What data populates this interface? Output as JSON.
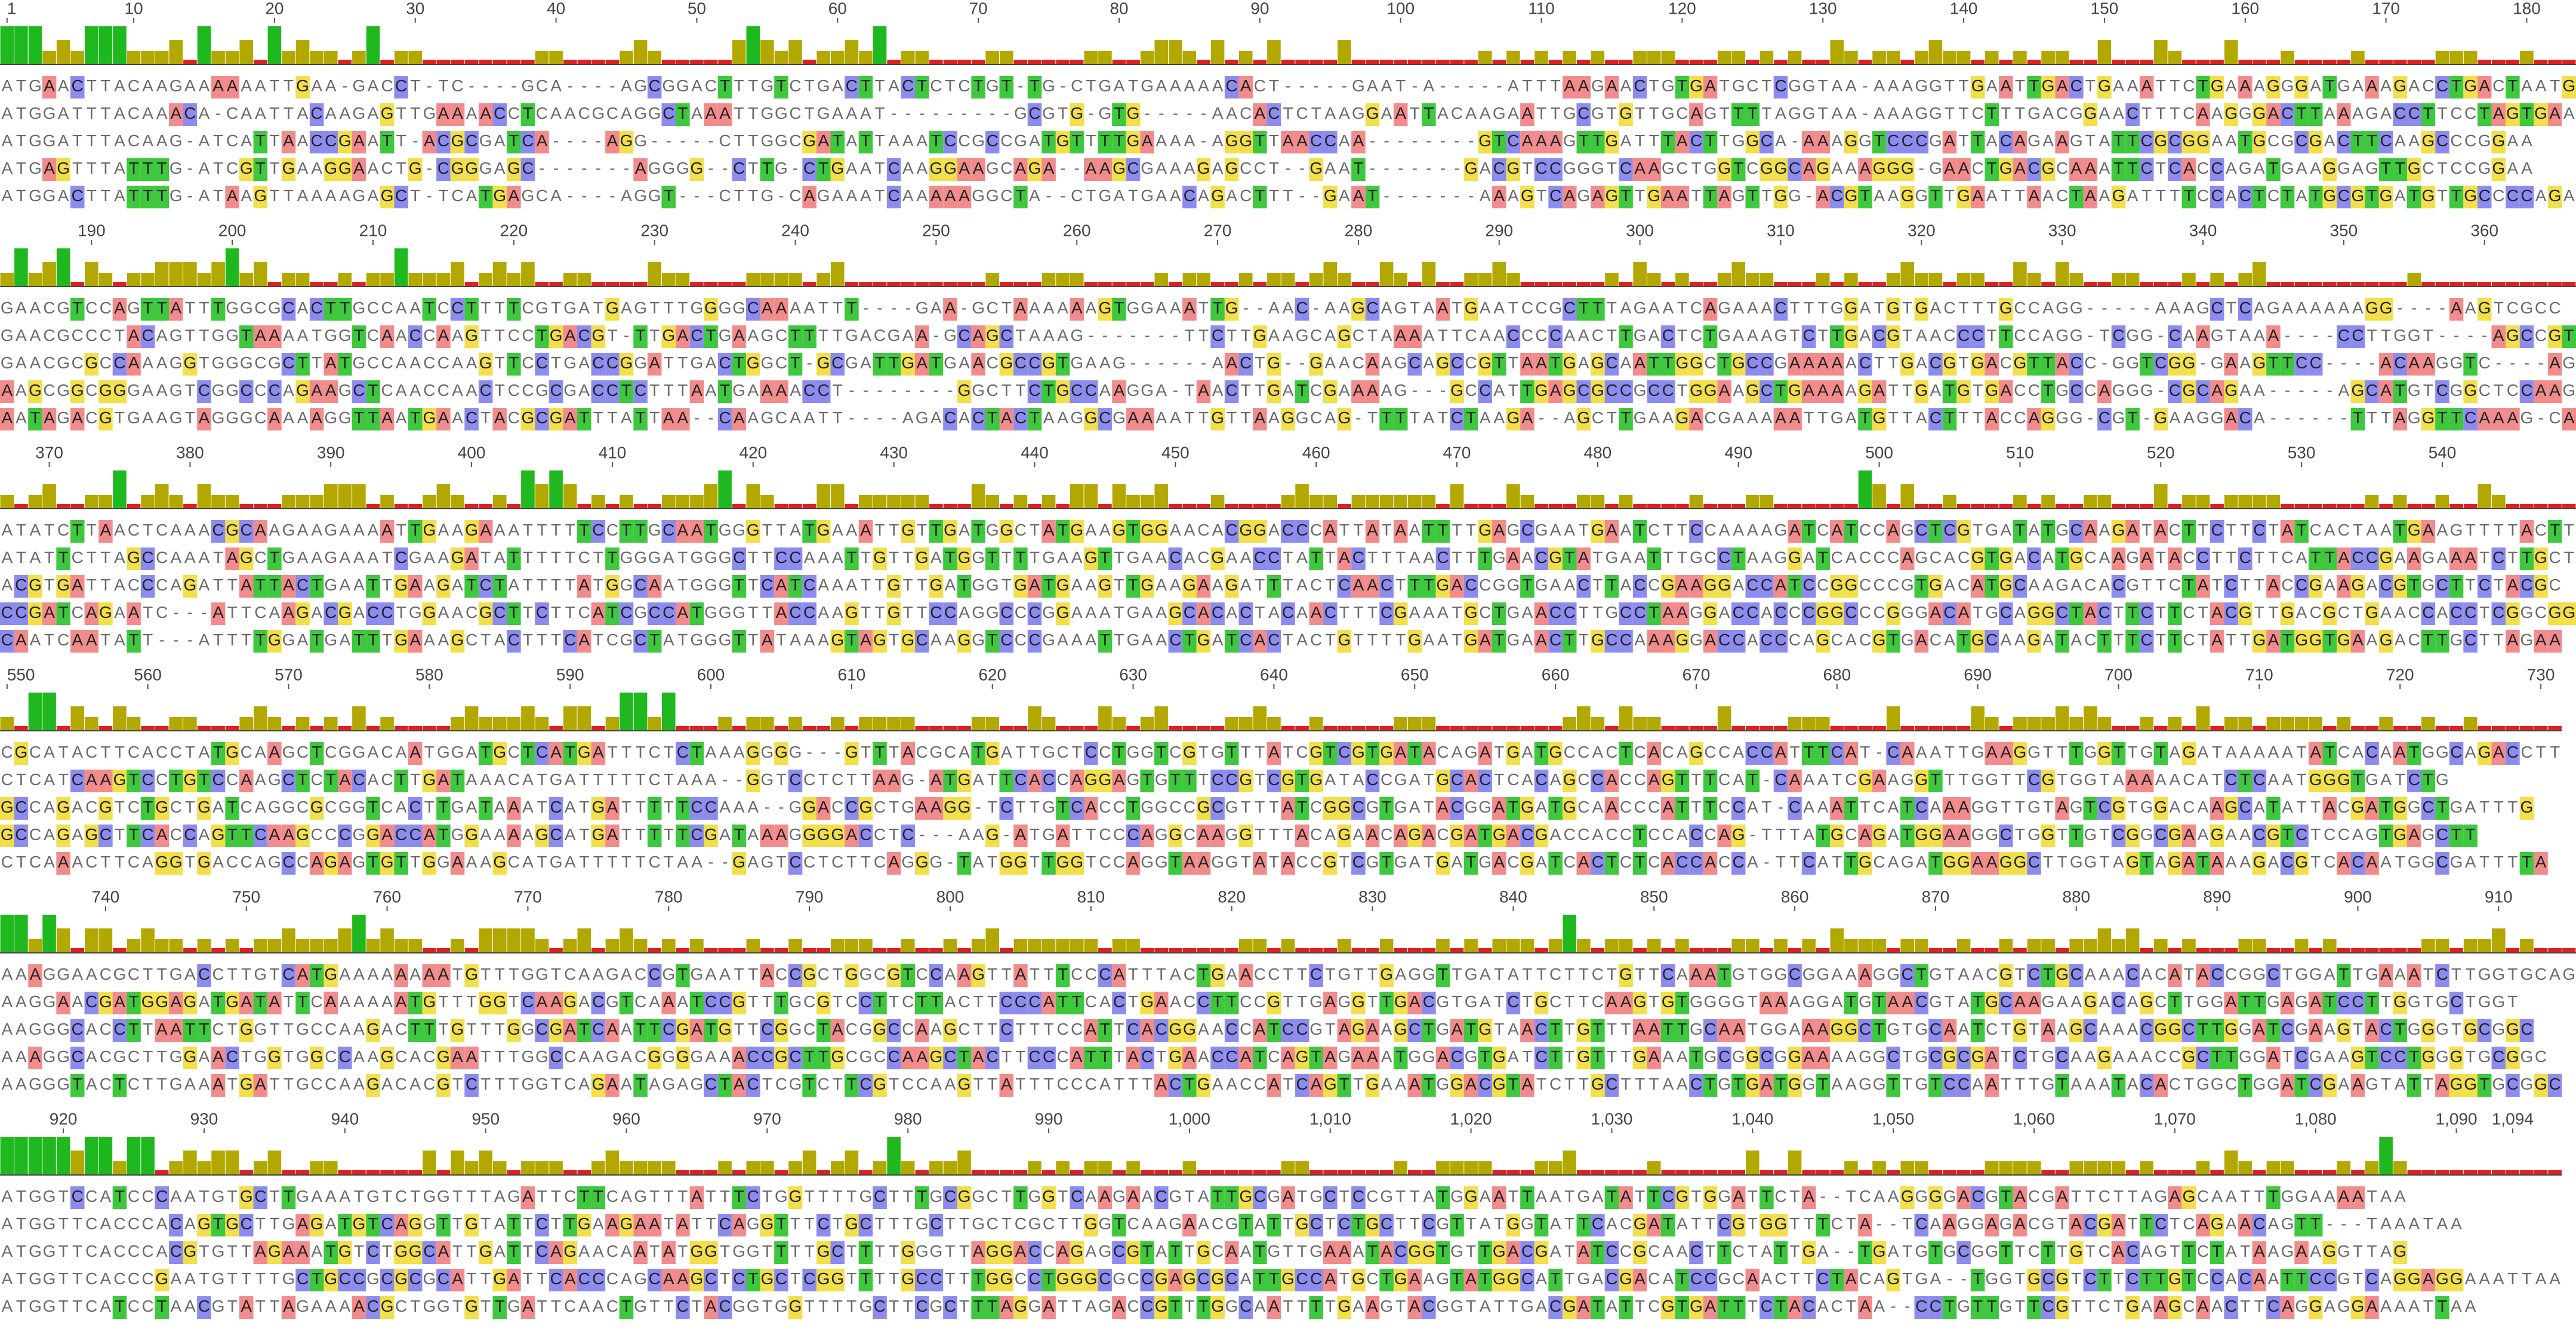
{
  "ruler": [
    1,
    10,
    20,
    30,
    40,
    50,
    60,
    70,
    80,
    90,
    100,
    110,
    120,
    130,
    140,
    150,
    160,
    170,
    180,
    190,
    200,
    210,
    220,
    230,
    240,
    250,
    260,
    270,
    280,
    290,
    300,
    310,
    320,
    330,
    340,
    350,
    360,
    370,
    380,
    390,
    400,
    410,
    420,
    430,
    440,
    450,
    460,
    470,
    480,
    490,
    500,
    510,
    520,
    530,
    540,
    550,
    560,
    570,
    580,
    590,
    600,
    610,
    620,
    630,
    640,
    650,
    660,
    670,
    680,
    690,
    700,
    710,
    720,
    730,
    740,
    750,
    760,
    770,
    780,
    790,
    800,
    810,
    820,
    830,
    840,
    850,
    860,
    870,
    880,
    890,
    900,
    910,
    920,
    930,
    940,
    950,
    960,
    970,
    980,
    990,
    {
      "value": 1000,
      "label": "1,000"
    },
    {
      "value": 1010,
      "label": "1,010"
    },
    {
      "value": 1020,
      "label": "1,020"
    },
    {
      "value": 1030,
      "label": "1,030"
    },
    {
      "value": 1040,
      "label": "1,040"
    },
    {
      "value": 1050,
      "label": "1,050"
    },
    {
      "value": 1060,
      "label": "1,060"
    },
    {
      "value": 1070,
      "label": "1,070"
    },
    {
      "value": 1080,
      "label": "1,080"
    },
    {
      "value": 1090,
      "label": "1,090"
    },
    {
      "value": 1094,
      "label": "1,094"
    }
  ],
  "base_colors": {
    "A": "#f28c8c",
    "C": "#8c8cf0",
    "G": "#f2df4a",
    "T": "#3ec83e"
  },
  "conservation_colors": {
    "full": "#1fb81f",
    "partial": "#b3a800",
    "low": "#e02020"
  },
  "blocks": [
    {
      "rows": [
        "ATGAACTTACAAGAAAAAATTGAA-GACCT-TC----GCA----AGCGGACTTTGTCTGACTTACTCTCTGT-TG-CTGATGAAAAACACT-----GAAT-A-----ATTTAAGAACTGTGATGCTCGGTAA-AAAGGTTGAATTGACTGAAATTCTGAAAGGGATGAAAGACCTGACTAATGAA",
        "ATGGATTTACAAACA-CAATTACAAGAGTTGAAAACCTCAACGCAGGCTAAATTGGCTGAAAT---------GCGTG-GTG-----AACACTCTAAGGAATTACAAGAATTGCGTGTTGCAGTTTTAGGTAA-AAAGGTTCTTTGACGGAACTTTCAAGGGACTTAAAGACCTTCCTAGTGAA",
        "ATGGATTTACAAG-ATCATTAACCGAATT-ACGCGATCA----AGG-----CTTGGCGATATTAAATCCGCCGATGTTTTGAAAA-AGGTTAACCAA--------GTCAAAGTTGATTTACTTGGCA-AAAGGTCCCGATTACAGAAGTATTCGCGGAATGCGCGACTTCAAGCCCGGAA",
        "ATGAGTTTATTTG-ATCGTTGAAGGAACTG-CGGGAGC-------AGGGG--CTTG-CTGAATCAAGGAAGCAGA--AAGCGAAAGAGCCT--GAAT-------GACGTCCGGGTCAAGCTGGTCGGCAGAAAGGG-GAACTGACGCAAATTCTCACCAGATGAAGGAGTTGCTCCGGAA",
        "ATGGACTTATTTG-ATAAGTTAAAAGAGCT-TCATGAGCA----AGGT---CTTG-CAGAAATCAAAAAGGCTA--CTGATGAACAGACTTT--GAAT-------AAAGTCAGAGTTGAATTAGTTGG-ACGTAAGGTTGAATTAACTAAGATTTTCCACTCTATGCGTGATGTTGCCCCAGAA"
      ]
    },
    {
      "rows": [
        "GAACGTCCAGTTATTTGGCGCACTTGCCAATCCTTTTCGTGATGAGTTTGGGGCAAAATTT----GAA-GCTAAAAAAGTGGAAATTG--AAC-AAGCAGTAATGAATCCGCTTTAGAATCAGAAACTTTGGATGTGACTTTGCCAGG-----AAAGCTCAGAAAAAAGG----AAGTCGCC",
        "GAACGCCCTACAGTTGGTAAAATGGTCAACCAAGTTCCTGACGT-TTGACTGAAGCTTTTGACGAA-GCAGCTAAAG-------TTCTTGAAGCAGCTAAAATTCAACCCCAACTTGACTCTGAAAGTCTTGACGTAACCCTTCCAGG-TCGG-CAAGTAAA----CCTTGGT----AGCCGT",
        "GAACGCGCCAAAGGTGGGCGCTTATGCCAACCAAGTTCCTGACCGGATTGACTGGCT-GCGATTGATGAACGCCGTGAAG------AACTG--GAACAAGCAGCCGTTAATGAGCAATTGGCTGCCGAAAAACTTGACGTGACGTTACC-GGTCGG-GAAGTTCC----ACAAGGTC----AGCC-TC",
        "AAGCGGCGGGAAGTCGGCCCAGAAGCTCAACCAACTCCGCGACCTCTTTAATGAAAACCT--------GGCTTCTGCCAAGGA-TAACTTGATCGAAAAG---GCCATTGAGCGCCGCCTGGAAGCTGAAAAGATTGATGTGACCTGCCAGGG-CGCAGAA-----AGCATGTCGGCTCCAAG-CACC",
        "AATAGACGTGAAGTAGGGCAAAAGGTTAATGAACTACGCGATTTATTAA--CAAGCAATT----AGACACTACTAAGGCGAAAATTGTTAAGGCAG-TTTTATCTAAGA--AGCTTGAAGACGAAAAATTGATGTTACTTTACCAGGG-CGT-GAAGGACA------TTTAGGTTCAAAG-CATC"
      ]
    },
    {
      "rows": [
        "ATATCTTAACTCAAACGCAAGAAGAAAATTGAAGAAATTTTTCCTTGCAATGGGTTATGAAATTGTTGATGGCTATGAAGTGGAACACGGACCCATTATAATTTTGAGCGAATGAATCTTCCAAAAGATCATCCAGCTCGTGATATGCAAGATACTTCTTCTATCACTAATGAAGTTTTACTTCGTA",
        "ATATTCTTAGCCAAATAGCTGAAGAAATCGAAGATATTTTTCTTGGGATGGGCTTCCAAATTGTTGATGGTTTTGAAGTTGAACACGAACCTATTACTTTAACTTTGAACGTATGAATTTGCCTAAGGATCACCCAGCACGTGACATGCAAGATACCTTCTTCATTACCGAAGAAATCTTGCTTCGTC",
        "ACGTGATTACCCAGATTATTACTGAATTGAAGATCTATTTTATGGCAATGGGTTCATCAAATTGTTGATGGTGATGAAGTTGAAGAAGATTTACTCAACTTTGACCGGTGAACTTACCGAAGGACCATCCGGCCCGTGACATGCAAGACACGTTCTATCTTACCGAAGACGTGCTTCTACGC",
        "CCGATCAGAATC---ATTCAAGACGACCTGGAACGCTTCTTCATCGCCATGGGTTACCAAGTTGTTCCAGGCCCGGAAATGAAGCACACTACAACTTTCGAAATGCTGAACCTTGCCTAAGGACCACCCGGCCCGGGACATGCAGGCTACTTCTTCTACGTTGACGCTGAACCACCTCGGCGG",
        "CAATCAATATT---ATTTTGGATGATTTGAAAGCTACTTTCATCGCTATGGGTTATAAAGTAGTGCAAGGTCCCGAAATTGAACTGATCACTACTGTTTTGAATGATGAACTTGCCAAAGGACCACCCAGCACGTGACATGCAAGATACTTTCTTCTATTGATGGTGAAGACTTGCTTAGAA"
      ]
    },
    {
      "rows": [
        "CGCATACTTCACCTATGCAAGCTCGGACAATGGATGCTCATGATTTCTCTAAAGGGG---GTTTACGCATGATTGCTCCTGGTCGTGTTTATCGTCGTGATACAGATGATGCCACTCACAGCCACCATTTCAT-CAAATTGAAGGTTTGGTTGTAGATAAAAATATCACAATGGCAGACCTT",
        "CTCATCAAGTCCTGTCCAAGCTCTACACTTGATAAACATGATTTTTCTAAA--GGTCCTCTTAAG-ATGATTCACCAGGAGTGTTTCCGTCGTGATACCGATGCACTCACAGCCACCAGTTTCAT-CAAATCGAAGGTTTGGTTCGTGGTAAAAACATCTCAATGGGTGATCTG",
        "GCCAGACGTCTGCTGATCAGGCGCGGTCACTTGATAAATCATGATTTTTCCAAA--GGACCGCTGAAGG-TCTTGTCACCTGGCCGCGTTTATCGGCGTGATACGGATGATGCAACCCATTTCCAT-CAAATTCATCAAAGGTTGTAGTCGTGGACAAGCATATTACGATGGCTGATTTG",
        "GCCAGAGCTTCACCAGTTCAAGCCCGGACCATGGAAAAGCATGATTTTTCGATAAAGGGGACCTC---AAG-ATGATTCCCAGGCAAGGTTTACAGAACAGACGATGACGACCACCTCCACCAG-TTTATGCAGATGGAAGGCTGGTTGTCGGCGAAGAACGTCTCCAGTGAGCTT",
        "CTCAAACTTCAGGTGACCAGCCAGAGTGTTGGAAAGCATGATTTTTCTAA--GAGTCCTCTTCAGGG-TATGGTTGGTCCAGGTAAGGTATACCGTCGTGATGATGACGATCACTCTCACCACCA-TTCATTGCAGATGGAAGGCTTGGTAGTAGATAAAGACGTCACAATGGCGATTTTA"
      ]
    },
    {
      "rows": [
        "AAAGGAACGCTTGACCTTGTCATGAAAAAAAATGTTTGGTCAAGACCGTGAATTACCGCTGGCGTCCAAGTTATTTCCCATTTACTGAACCTTCTGTTGAGGTTGATATTCTTCTGTTCAAATGTGGCGGAAAGGCTGTAACGTCTGCAAACACATACCGGCTGGATTGAAATCTTGGTGCAGCT",
        "AAGGAACGATGGAGATGATATTCAAAAAATGTTTGGTCAAGACGTCAAATCCGTTTGCGTCCTTCTTACTTCCCATTCACTGAACCTTCCGTTGAGGTTGACGTGATCTGCTTCAAGTGTGGGGTAAAGGATGTAACGTATGCAAGAAGACAGCTTGGATTGAGATCCTTGGTGCTGGT",
        "AAGGGCACCTTAATTCTGGTTGCCAAGACTTTGTTTGGCGATCAATTCGATGTTCGGCTACGGCCAAGCTTCTTTCCATTCACGGAACCATCCGTAGAAGCTGATGTAACTTGTTTAATTGCAATGGAAAGGCTGTGCAATCTGTAAGCAAACGGCTTGGATCGAAGTACTGGGTGCGGC",
        "AAAGGCACGCTTGGAACTGGTGGCCAAGCACGAATTTGGCCAAGACGGGGAAACCGCTTGCGCCAAGCTACTTCCCATTTACTGAACCATCAGTAGAAATGGACGTGATCTTGTTTGAAATGCGGCGGAAAAGGCTGCGCGATCTGCAAGAAACCGCTTGGATCGAAGTCCTGGGTGCGGC",
        "AAGGGTACTCTTGAAATGATTGCCAAGACACGTCTTTGGTCAGAATAGAGCTACTCGTCTTCGTCCAAGTTATTTCCCATTTACTGAACCATCAGTTGAAATGGACGTATCTTGCTTTAACTGTGATGGTAAGGTTGTCCAATTTGTAAATACACTGGCTGGATCGAAGTATTAGGTGCGGC"
      ]
    },
    {
      "rows": [
        "ATGGTCCATCCCAATGTGCTTGAAATGTCTGGTTTAGATTCTTCAGTTTATTTCTGGTTTTGCTTTGCGGCTTGGTCAAGAACGTATTGCGATGCTCCGTTATGGAATTAATGATATTCGTGGATTCTA--TCAAGGGGACGTACGATTCTTAGAGCAATTTGGAAAATAA",
        "ATGGTTCACCCACAGTGCTTGAGATGTCAGGTTGTATTCTTGAAGAATATTCAGGTTTCTGCTTTGCTTGCTCGCTTGGTCAAGAACGTATTGCTCTGCTTCGTTATGGTATTCACGATATTCGTGGTTTCTA--TCAAGGAGACGTACGATTCTCAGAACAGTT---TAAATAA",
        "ATGGTTCACCCACGTGTTAGAAATGTCTGGCATTGATTCAGAACAATATGGTGGTTTTGCTTTTGGGTTAGGACCAGAGCGTATTGCAATGTTGAAATACGGTGTTGACGATATCCGCAACTTCTATTGA--TGATGTGCGGTTCTTGTCACAGTTCTATAAGAAGGTTAG",
        "ATGGTTCACCCGAATGTTTTGCTGCCGCGCGCATTGATTCACCCAGCAAGCTCTGCTCGGTTTTGCCTTTGGCCTGGGCGCCGAGCGCATTGCCATGCTGAAGTATGGCATTGACGACATCCGCAACTTCTACAGTGA--TGGTGCGTCTTCTTGTCCACAATTCCGTCAGGAGGAAATTAA",
        "ATGGTTCATCCTAACGTATTAGAAAACGCTGGTGTTGATTCAACTGTTCTACGGTGGTTTTGCTTCGCTTTAGGATTAGACCGTTTGGCAATTTTGAAGTACGGTATTGACGATATTCGTGATTTCTACACTAA--CCTGTTGTTCGTTCTGAAGCAACTTCAGGAGGAAAATTAA"
      ]
    }
  ]
}
